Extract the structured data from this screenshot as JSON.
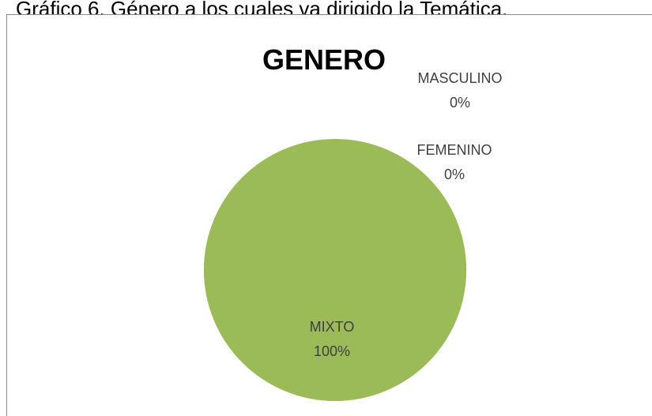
{
  "chart_data": {
    "type": "pie",
    "caption": "Gráfico 6. Género a los cuales va  dirigido la Temática.",
    "title": "GENERO",
    "categories": [
      "MASCULINO",
      "FEMENINO",
      "MIXTO"
    ],
    "values": [
      0,
      0,
      100
    ],
    "value_labels": [
      "0%",
      "0%",
      "100%"
    ],
    "colors": [
      "#4f81bd",
      "#c0504d",
      "#9bbb59"
    ]
  }
}
